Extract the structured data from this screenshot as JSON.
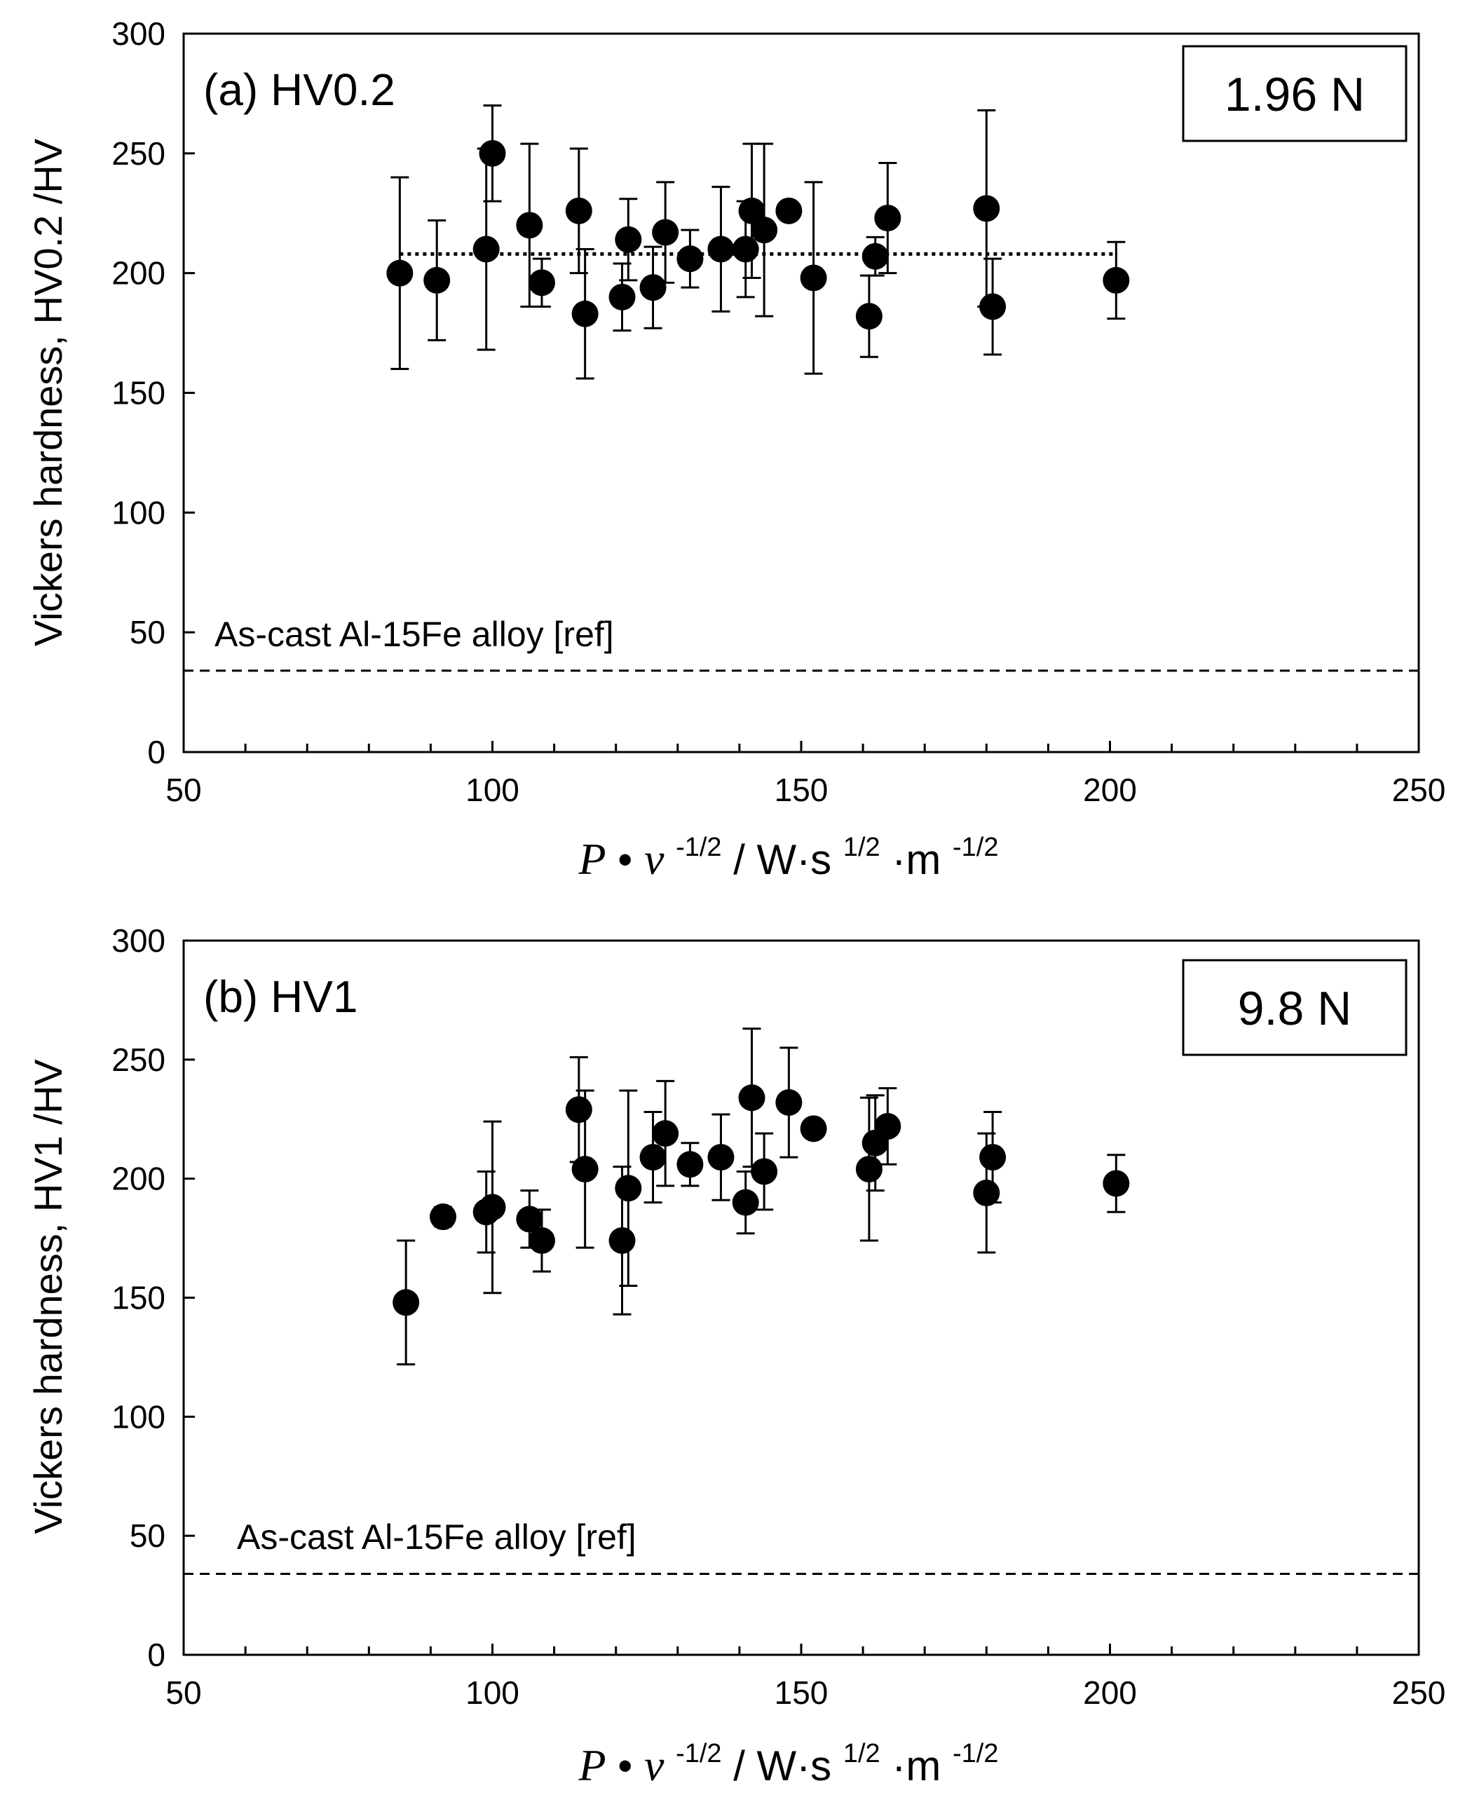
{
  "chart_data": [
    {
      "type": "scatter",
      "panel_label": "(a) HV0.2",
      "load_label": "1.96 N",
      "ylabel": "Vickers hardness,  HV0.2 /HV",
      "xlabel": {
        "P": "P",
        "dot": " •",
        "v": "v",
        "exp1": " -1/2",
        "unit_main": " / W·s",
        "exp2": "1/2",
        "unit_m": "·m",
        "exp3": "-1/2"
      },
      "xlim": [
        50,
        250
      ],
      "ylim": [
        0,
        300
      ],
      "xticks": [
        50,
        100,
        150,
        200,
        250
      ],
      "yticks": [
        0,
        50,
        100,
        150,
        200,
        250,
        300
      ],
      "x_minor_step": 10,
      "reference": {
        "label": "As-cast Al-15Fe alloy [ref]",
        "value": 34
      },
      "mean_line": {
        "value": 208,
        "x_range": [
          85,
          201
        ]
      },
      "series": [
        {
          "name": "HV0.2",
          "points": [
            {
              "x": 85,
              "y": 200,
              "err": 40
            },
            {
              "x": 91,
              "y": 197,
              "err": 25
            },
            {
              "x": 99,
              "y": 210,
              "err": 42
            },
            {
              "x": 100,
              "y": 250,
              "err": 20
            },
            {
              "x": 106,
              "y": 220,
              "err": 34
            },
            {
              "x": 108,
              "y": 196,
              "err": 10
            },
            {
              "x": 114,
              "y": 226,
              "err": 26
            },
            {
              "x": 115,
              "y": 183,
              "err": 27
            },
            {
              "x": 121,
              "y": 190,
              "err": 14
            },
            {
              "x": 122,
              "y": 214,
              "err": 17
            },
            {
              "x": 126,
              "y": 194,
              "err": 17
            },
            {
              "x": 128,
              "y": 217,
              "err": 21
            },
            {
              "x": 132,
              "y": 206,
              "err": 12
            },
            {
              "x": 137,
              "y": 210,
              "err": 26
            },
            {
              "x": 141,
              "y": 210,
              "err": 20
            },
            {
              "x": 142,
              "y": 226,
              "err": 28
            },
            {
              "x": 144,
              "y": 218,
              "err": 36
            },
            {
              "x": 148,
              "y": 226,
              "err": 0
            },
            {
              "x": 152,
              "y": 198,
              "err": 40
            },
            {
              "x": 161,
              "y": 182,
              "err": 17
            },
            {
              "x": 162,
              "y": 207,
              "err": 8
            },
            {
              "x": 164,
              "y": 223,
              "err": 23
            },
            {
              "x": 180,
              "y": 227,
              "err": 41
            },
            {
              "x": 181,
              "y": 186,
              "err": 20
            },
            {
              "x": 201,
              "y": 197,
              "err": 16
            }
          ]
        }
      ]
    },
    {
      "type": "scatter",
      "panel_label": "(b) HV1",
      "load_label": "9.8 N",
      "ylabel": "Vickers hardness,  HV1  /HV",
      "xlabel": {
        "P": "P",
        "dot": " •",
        "v": "v",
        "exp1": " -1/2",
        "unit_main": " / W·s",
        "exp2": "1/2",
        "unit_m": "·m",
        "exp3": "-1/2"
      },
      "xlim": [
        50,
        250
      ],
      "ylim": [
        0,
        300
      ],
      "xticks": [
        50,
        100,
        150,
        200,
        250
      ],
      "yticks": [
        0,
        50,
        100,
        150,
        200,
        250,
        300
      ],
      "x_minor_step": 10,
      "reference": {
        "label": "As-cast Al-15Fe alloy [ref]",
        "value": 34
      },
      "series": [
        {
          "name": "HV1",
          "points": [
            {
              "x": 86,
              "y": 148,
              "err": 26
            },
            {
              "x": 92,
              "y": 184,
              "err": 4
            },
            {
              "x": 99,
              "y": 186,
              "err": 17
            },
            {
              "x": 100,
              "y": 188,
              "err": 36
            },
            {
              "x": 106,
              "y": 183,
              "err": 12
            },
            {
              "x": 108,
              "y": 174,
              "err": 13
            },
            {
              "x": 114,
              "y": 229,
              "err": 22
            },
            {
              "x": 115,
              "y": 204,
              "err": 33
            },
            {
              "x": 121,
              "y": 174,
              "err": 31
            },
            {
              "x": 122,
              "y": 196,
              "err": 41
            },
            {
              "x": 126,
              "y": 209,
              "err": 19
            },
            {
              "x": 128,
              "y": 219,
              "err": 22
            },
            {
              "x": 132,
              "y": 206,
              "err": 9
            },
            {
              "x": 137,
              "y": 209,
              "err": 18
            },
            {
              "x": 141,
              "y": 190,
              "err": 13
            },
            {
              "x": 142,
              "y": 234,
              "err": 29
            },
            {
              "x": 144,
              "y": 203,
              "err": 16
            },
            {
              "x": 148,
              "y": 232,
              "err": 23
            },
            {
              "x": 152,
              "y": 221,
              "err": 0
            },
            {
              "x": 161,
              "y": 204,
              "err": 30
            },
            {
              "x": 162,
              "y": 215,
              "err": 20
            },
            {
              "x": 164,
              "y": 222,
              "err": 16
            },
            {
              "x": 180,
              "y": 194,
              "err": 25
            },
            {
              "x": 181,
              "y": 209,
              "err": 19
            },
            {
              "x": 201,
              "y": 198,
              "err": 12
            }
          ]
        }
      ]
    }
  ]
}
